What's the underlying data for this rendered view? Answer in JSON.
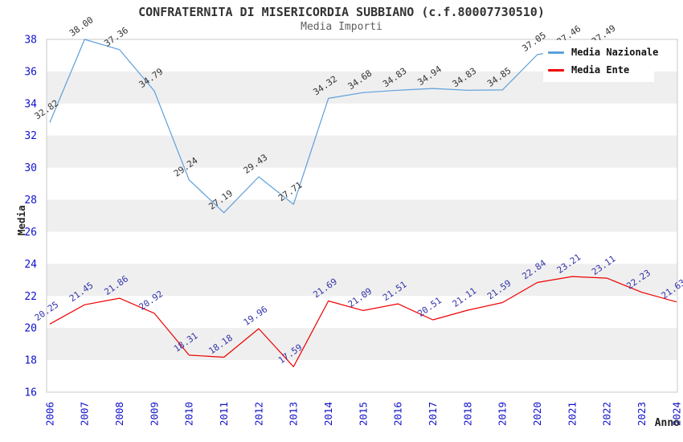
{
  "header": {
    "title": "CONFRATERNITA DI MISERICORDIA SUBBIANO (c.f.80007730510)",
    "subtitle": "Media Importi"
  },
  "colors": {
    "nazionale_line": "#5d9fdb",
    "ente_line": "#ee0000",
    "nazionale_label": "#333333",
    "ente_label": "#3333aa",
    "tick_label": "#1111cc",
    "axis_title": "#222222",
    "band_gray": "#efefef",
    "plot_border": "#c8c8c8",
    "legend_bg": "#ffffff"
  },
  "chart_data": {
    "type": "line",
    "title": "CONFRATERNITA DI MISERICORDIA SUBBIANO (c.f.80007730510)",
    "subtitle": "Media Importi",
    "xlabel": "Anno",
    "ylabel": "Media",
    "x": [
      2006,
      2007,
      2008,
      2009,
      2010,
      2011,
      2012,
      2013,
      2014,
      2015,
      2016,
      2017,
      2018,
      2019,
      2020,
      2021,
      2022,
      2023,
      2024
    ],
    "ylim": [
      16,
      38
    ],
    "ytick_step": 2,
    "grid": "alternating-horizontal-bands",
    "legend_position": "top-right",
    "value_label_decimals": 2,
    "series": [
      {
        "name": "Media Nazionale",
        "color": "#5d9fdb",
        "label_color": "#333333",
        "values": [
          32.82,
          38.0,
          37.36,
          34.79,
          29.24,
          27.19,
          29.43,
          27.71,
          34.32,
          34.68,
          34.83,
          34.94,
          34.83,
          34.85,
          37.05,
          37.46,
          37.49,
          null,
          null
        ],
        "note": "2021 value label partially hidden behind legend; series ends at 2022"
      },
      {
        "name": "Media Ente",
        "color": "#ee0000",
        "label_color": "#3333aa",
        "values": [
          20.25,
          21.45,
          21.86,
          20.92,
          18.31,
          18.18,
          19.96,
          17.59,
          21.69,
          21.09,
          21.51,
          20.51,
          21.11,
          21.59,
          22.84,
          23.21,
          23.11,
          22.23,
          21.63
        ]
      }
    ]
  }
}
